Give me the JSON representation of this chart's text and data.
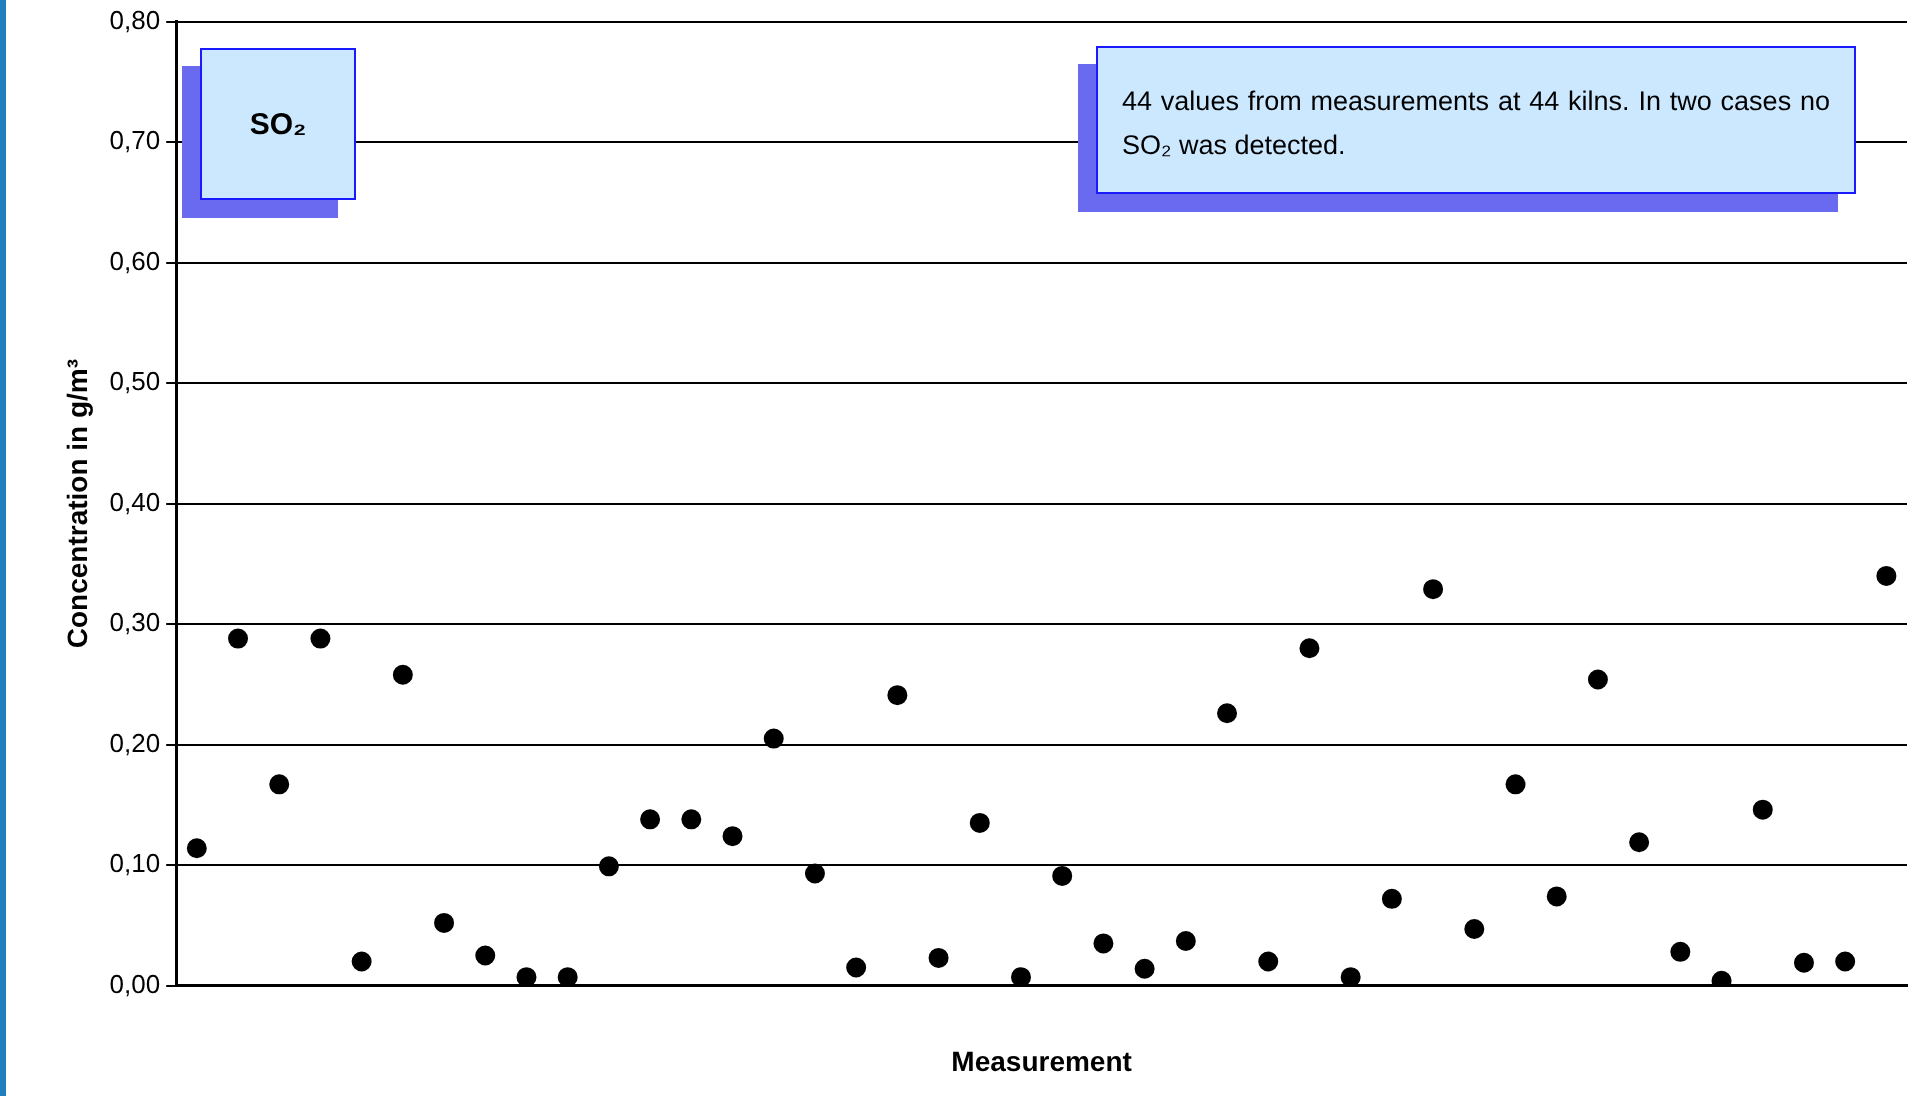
{
  "chart_data": {
    "type": "scatter",
    "xlabel": "Measurement",
    "ylabel": "Concentration in g/m³",
    "annotations": [
      "SO₂",
      "44 values from measurements at 44 kilns. In two cases no SO₂ was detected."
    ],
    "categories": [
      null,
      null,
      null,
      null,
      null,
      null,
      null,
      null,
      null,
      null,
      null,
      null,
      null,
      null,
      null,
      null,
      null,
      null,
      null,
      null,
      null,
      null,
      null,
      null,
      null,
      null,
      null,
      null,
      null,
      null,
      null,
      null,
      null,
      null,
      null,
      null,
      null,
      null,
      null,
      null,
      null,
      null
    ],
    "series": [
      {
        "color": "#000000",
        "values": [
          0.114,
          0.288,
          0.167,
          0.288,
          0.02,
          0.258,
          0.052,
          0.025,
          0.007,
          0.007,
          0.099,
          0.138,
          0.138,
          0.124,
          0.205,
          0.093,
          0.015,
          0.241,
          0.023,
          0.135,
          0.007,
          0.091,
          0.035,
          0.014,
          0.037,
          0.226,
          0.02,
          0.28,
          0.007,
          0.072,
          0.329,
          0.047,
          0.167,
          0.074,
          0.254,
          0.119,
          0.028,
          0.004,
          0.146,
          0.019,
          0.02,
          0.34
        ]
      }
    ],
    "ylim": [
      0,
      0.8
    ],
    "yticks": [
      {
        "value": 0,
        "label": "0,00"
      },
      {
        "value": 0.1,
        "label": "0,10"
      },
      {
        "value": 0.2,
        "label": "0,20"
      },
      {
        "value": 0.3,
        "label": "0,30"
      },
      {
        "value": 0.4,
        "label": "0,40"
      },
      {
        "value": 0.5,
        "label": "0,50"
      },
      {
        "value": 0.6,
        "label": "0,60"
      },
      {
        "value": 0.7,
        "label": "0,70"
      },
      {
        "value": 0.8,
        "label": "0,80"
      }
    ],
    "grid": "y",
    "marker": "circle",
    "legend": false
  }
}
